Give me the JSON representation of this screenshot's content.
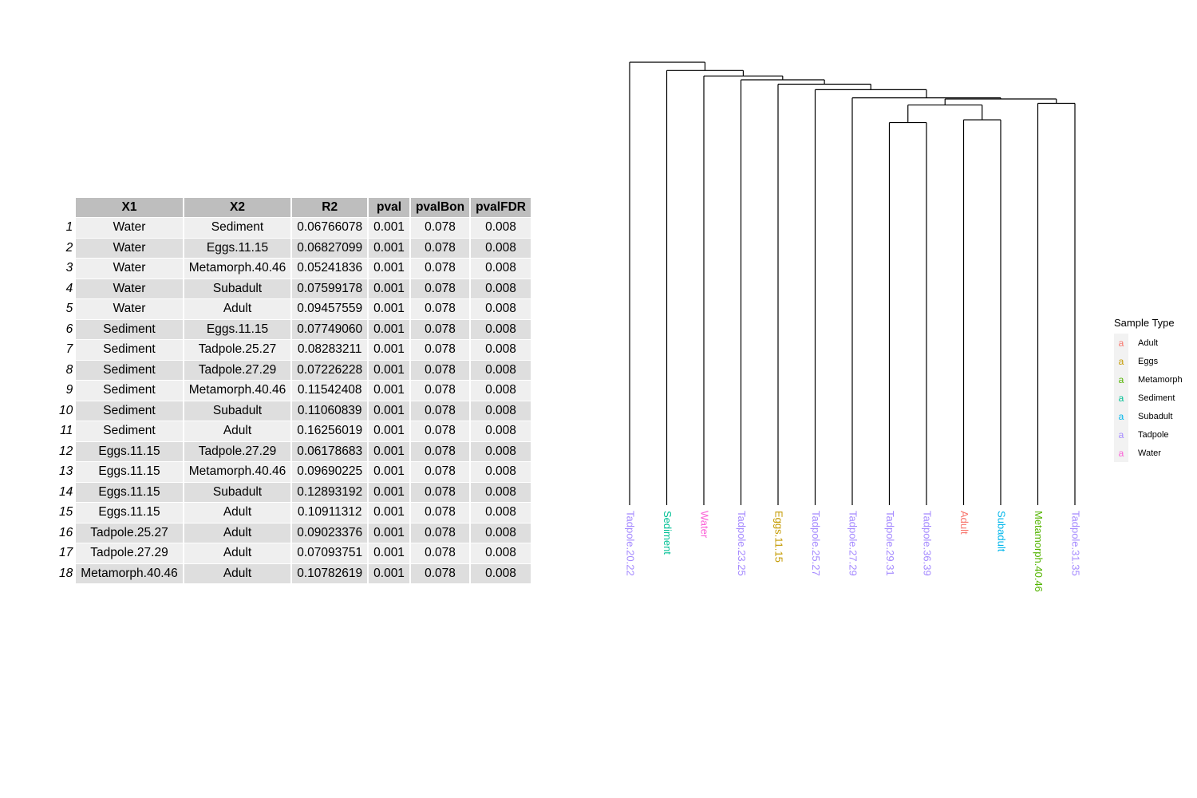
{
  "table": {
    "columns": [
      "X1",
      "X2",
      "R2",
      "pval",
      "pvalBon",
      "pvalFDR"
    ],
    "rows": [
      [
        "1",
        "Water",
        "Sediment",
        "0.06766078",
        "0.001",
        "0.078",
        "0.008"
      ],
      [
        "2",
        "Water",
        "Eggs.11.15",
        "0.06827099",
        "0.001",
        "0.078",
        "0.008"
      ],
      [
        "3",
        "Water",
        "Metamorph.40.46",
        "0.05241836",
        "0.001",
        "0.078",
        "0.008"
      ],
      [
        "4",
        "Water",
        "Subadult",
        "0.07599178",
        "0.001",
        "0.078",
        "0.008"
      ],
      [
        "5",
        "Water",
        "Adult",
        "0.09457559",
        "0.001",
        "0.078",
        "0.008"
      ],
      [
        "6",
        "Sediment",
        "Eggs.11.15",
        "0.07749060",
        "0.001",
        "0.078",
        "0.008"
      ],
      [
        "7",
        "Sediment",
        "Tadpole.25.27",
        "0.08283211",
        "0.001",
        "0.078",
        "0.008"
      ],
      [
        "8",
        "Sediment",
        "Tadpole.27.29",
        "0.07226228",
        "0.001",
        "0.078",
        "0.008"
      ],
      [
        "9",
        "Sediment",
        "Metamorph.40.46",
        "0.11542408",
        "0.001",
        "0.078",
        "0.008"
      ],
      [
        "10",
        "Sediment",
        "Subadult",
        "0.11060839",
        "0.001",
        "0.078",
        "0.008"
      ],
      [
        "11",
        "Sediment",
        "Adult",
        "0.16256019",
        "0.001",
        "0.078",
        "0.008"
      ],
      [
        "12",
        "Eggs.11.15",
        "Tadpole.27.29",
        "0.06178683",
        "0.001",
        "0.078",
        "0.008"
      ],
      [
        "13",
        "Eggs.11.15",
        "Metamorph.40.46",
        "0.09690225",
        "0.001",
        "0.078",
        "0.008"
      ],
      [
        "14",
        "Eggs.11.15",
        "Subadult",
        "0.12893192",
        "0.001",
        "0.078",
        "0.008"
      ],
      [
        "15",
        "Eggs.11.15",
        "Adult",
        "0.10911312",
        "0.001",
        "0.078",
        "0.008"
      ],
      [
        "16",
        "Tadpole.25.27",
        "Adult",
        "0.09023376",
        "0.001",
        "0.078",
        "0.008"
      ],
      [
        "17",
        "Tadpole.27.29",
        "Adult",
        "0.07093751",
        "0.001",
        "0.078",
        "0.008"
      ],
      [
        "18",
        "Metamorph.40.46",
        "Adult",
        "0.10782619",
        "0.001",
        "0.078",
        "0.008"
      ]
    ]
  },
  "chart_data": {
    "type": "dendrogram",
    "leaves": [
      {
        "label": "Tadpole.20.22",
        "type": "Tadpole"
      },
      {
        "label": "Sediment",
        "type": "Sediment"
      },
      {
        "label": "Water",
        "type": "Water"
      },
      {
        "label": "Tadpole.23.25",
        "type": "Tadpole"
      },
      {
        "label": "Eggs.11.15",
        "type": "Eggs"
      },
      {
        "label": "Tadpole.25.27",
        "type": "Tadpole"
      },
      {
        "label": "Tadpole.27.29",
        "type": "Tadpole"
      },
      {
        "label": "Tadpole.29.31",
        "type": "Tadpole"
      },
      {
        "label": "Tadpole.36.39",
        "type": "Tadpole"
      },
      {
        "label": "Adult",
        "type": "Adult"
      },
      {
        "label": "Subadult",
        "type": "Subadult"
      },
      {
        "label": "Metamorph.40.46",
        "type": "Metamorph"
      },
      {
        "label": "Tadpole.31.35",
        "type": "Tadpole"
      }
    ],
    "merges": [
      {
        "a": 7,
        "b": 8,
        "height": 0.155
      },
      {
        "a": 9,
        "b": 10,
        "height": 0.16
      },
      {
        "a": "m0",
        "b": "m1",
        "height": 0.187
      },
      {
        "a": 11,
        "b": 12,
        "height": 0.19
      },
      {
        "a": "m2",
        "b": "m3",
        "height": 0.198
      },
      {
        "a": 6,
        "b": "m4",
        "height": 0.2
      },
      {
        "a": 5,
        "b": "m5",
        "height": 0.215
      },
      {
        "a": 4,
        "b": "m6",
        "height": 0.225
      },
      {
        "a": 3,
        "b": "m7",
        "height": 0.233
      },
      {
        "a": 2,
        "b": "m8",
        "height": 0.24
      },
      {
        "a": 1,
        "b": "m9",
        "height": 0.25
      },
      {
        "a": 0,
        "b": "m10",
        "height": 0.265
      }
    ],
    "legend": {
      "title": "Sample Type",
      "key_glyph": "a",
      "entries": [
        {
          "name": "Adult",
          "color": "#F8766D"
        },
        {
          "name": "Eggs",
          "color": "#C49A00"
        },
        {
          "name": "Metamorph",
          "color": "#53B400"
        },
        {
          "name": "Sediment",
          "color": "#00C094"
        },
        {
          "name": "Subadult",
          "color": "#00B6EB"
        },
        {
          "name": "Tadpole",
          "color": "#A58AFF"
        },
        {
          "name": "Water",
          "color": "#FB61D7"
        }
      ]
    }
  }
}
